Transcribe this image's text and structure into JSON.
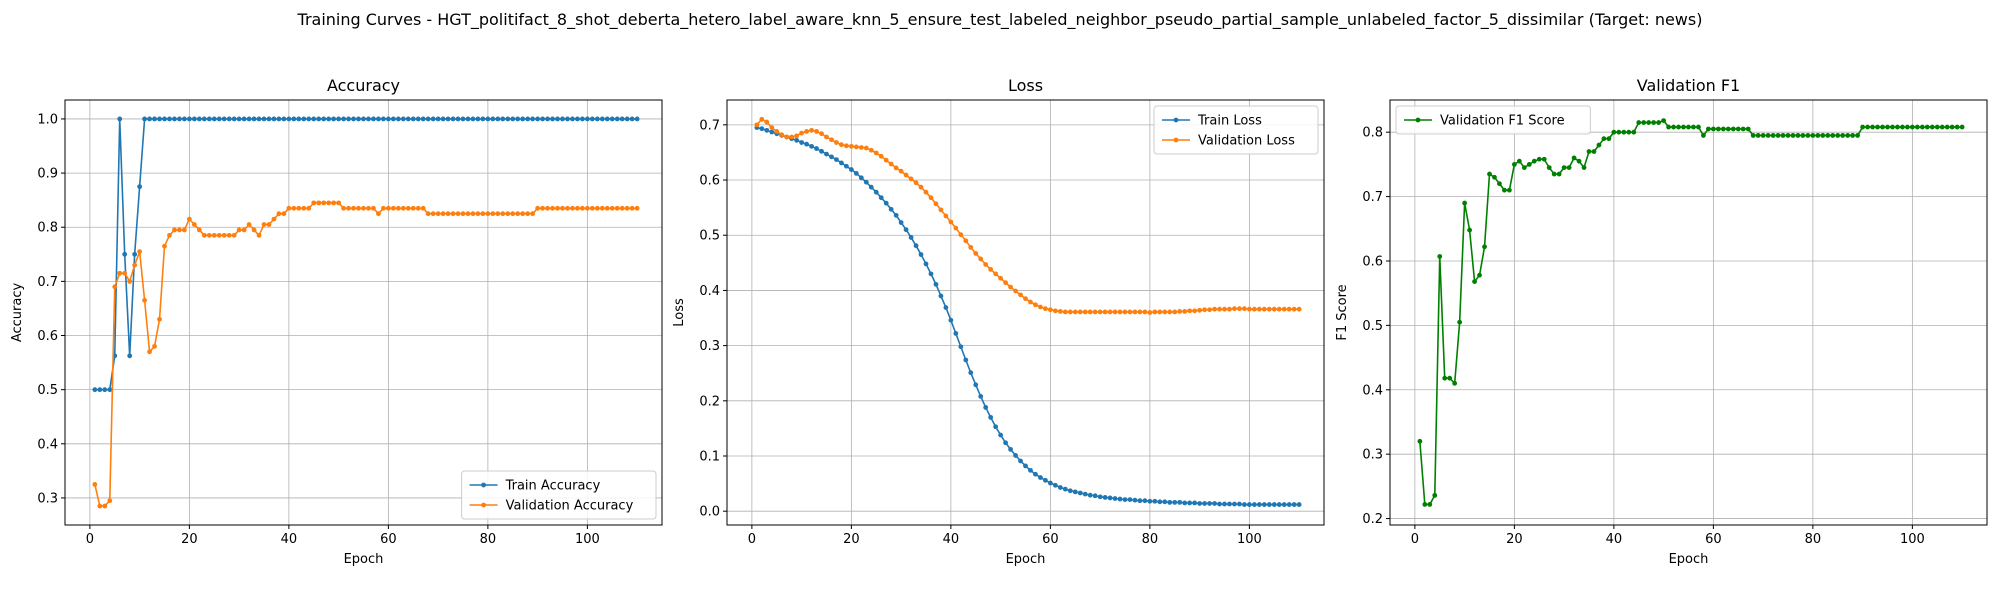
{
  "figure": {
    "suptitle": "Training Curves - HGT_politifact_8_shot_deberta_hetero_label_aware_knn_5_ensure_test_labeled_neighbor_pseudo_partial_sample_unlabeled_factor_5_dissimilar (Target: news)"
  },
  "colors": {
    "train": "#1f77b4",
    "val": "#ff7f0e",
    "f1": "#008000",
    "grid": "#b0b0b0"
  },
  "chart_data": [
    {
      "type": "line",
      "title": "Accuracy",
      "xlabel": "Epoch",
      "ylabel": "Accuracy",
      "xlim": [
        -5,
        115
      ],
      "ylim": [
        0.25,
        1.035
      ],
      "xticks": [
        0,
        20,
        40,
        60,
        80,
        100
      ],
      "yticks": [
        0.3,
        0.4,
        0.5,
        0.6,
        0.7,
        0.8,
        0.9,
        1.0
      ],
      "ytick_labels": [
        "0.3",
        "0.4",
        "0.5",
        "0.6",
        "0.7",
        "0.8",
        "0.9",
        "1.0"
      ],
      "grid": true,
      "legend_position": "lower-right",
      "series": [
        {
          "name": "Train Accuracy",
          "color": "#1f77b4",
          "x_start": 1,
          "values": [
            0.5,
            0.5,
            0.5,
            0.5,
            0.5625,
            1.0,
            0.75,
            0.5625,
            0.75,
            0.875,
            1.0,
            1.0,
            1.0,
            1.0,
            1.0,
            1.0,
            1.0,
            1.0,
            1.0,
            1.0,
            1.0,
            1.0,
            1.0,
            1.0,
            1.0,
            1.0,
            1.0,
            1.0,
            1.0,
            1.0,
            1.0,
            1.0,
            1.0,
            1.0,
            1.0,
            1.0,
            1.0,
            1.0,
            1.0,
            1.0,
            1.0,
            1.0,
            1.0,
            1.0,
            1.0,
            1.0,
            1.0,
            1.0,
            1.0,
            1.0,
            1.0,
            1.0,
            1.0,
            1.0,
            1.0,
            1.0,
            1.0,
            1.0,
            1.0,
            1.0,
            1.0,
            1.0,
            1.0,
            1.0,
            1.0,
            1.0,
            1.0,
            1.0,
            1.0,
            1.0,
            1.0,
            1.0,
            1.0,
            1.0,
            1.0,
            1.0,
            1.0,
            1.0,
            1.0,
            1.0,
            1.0,
            1.0,
            1.0,
            1.0,
            1.0,
            1.0,
            1.0,
            1.0,
            1.0,
            1.0,
            1.0,
            1.0,
            1.0,
            1.0,
            1.0,
            1.0,
            1.0,
            1.0,
            1.0,
            1.0,
            1.0,
            1.0,
            1.0,
            1.0,
            1.0,
            1.0,
            1.0,
            1.0,
            1.0,
            1.0
          ]
        },
        {
          "name": "Validation Accuracy",
          "color": "#ff7f0e",
          "x_start": 1,
          "values": [
            0.325,
            0.285,
            0.285,
            0.295,
            0.69,
            0.715,
            0.715,
            0.7,
            0.73,
            0.755,
            0.665,
            0.57,
            0.58,
            0.63,
            0.765,
            0.785,
            0.795,
            0.795,
            0.795,
            0.815,
            0.805,
            0.795,
            0.785,
            0.785,
            0.785,
            0.785,
            0.785,
            0.785,
            0.785,
            0.795,
            0.795,
            0.805,
            0.795,
            0.785,
            0.805,
            0.805,
            0.815,
            0.825,
            0.825,
            0.835,
            0.835,
            0.835,
            0.835,
            0.835,
            0.845,
            0.845,
            0.845,
            0.845,
            0.845,
            0.845,
            0.835,
            0.835,
            0.835,
            0.835,
            0.835,
            0.835,
            0.835,
            0.825,
            0.835,
            0.835,
            0.835,
            0.835,
            0.835,
            0.835,
            0.835,
            0.835,
            0.835,
            0.825,
            0.825,
            0.825,
            0.825,
            0.825,
            0.825,
            0.825,
            0.825,
            0.825,
            0.825,
            0.825,
            0.825,
            0.825,
            0.825,
            0.825,
            0.825,
            0.825,
            0.825,
            0.825,
            0.825,
            0.825,
            0.825,
            0.835,
            0.835,
            0.835,
            0.835,
            0.835,
            0.835,
            0.835,
            0.835,
            0.835,
            0.835,
            0.835,
            0.835,
            0.835,
            0.835,
            0.835,
            0.835,
            0.835,
            0.835,
            0.835,
            0.835,
            0.835
          ]
        }
      ]
    },
    {
      "type": "line",
      "title": "Loss",
      "xlabel": "Epoch",
      "ylabel": "Loss",
      "xlim": [
        -5,
        115
      ],
      "ylim": [
        -0.025,
        0.745
      ],
      "xticks": [
        0,
        20,
        40,
        60,
        80,
        100
      ],
      "yticks": [
        0.0,
        0.1,
        0.2,
        0.3,
        0.4,
        0.5,
        0.6,
        0.7
      ],
      "ytick_labels": [
        "0.0",
        "0.1",
        "0.2",
        "0.3",
        "0.4",
        "0.5",
        "0.6",
        "0.7"
      ],
      "grid": true,
      "legend_position": "upper-right",
      "series": [
        {
          "name": "Train Loss",
          "color": "#1f77b4",
          "x_start": 1,
          "values": [
            0.695,
            0.693,
            0.69,
            0.687,
            0.684,
            0.681,
            0.678,
            0.675,
            0.672,
            0.668,
            0.665,
            0.661,
            0.657,
            0.652,
            0.647,
            0.642,
            0.637,
            0.631,
            0.625,
            0.619,
            0.612,
            0.604,
            0.596,
            0.587,
            0.578,
            0.568,
            0.558,
            0.547,
            0.536,
            0.523,
            0.51,
            0.496,
            0.481,
            0.465,
            0.448,
            0.43,
            0.411,
            0.39,
            0.369,
            0.346,
            0.322,
            0.298,
            0.274,
            0.251,
            0.229,
            0.208,
            0.188,
            0.17,
            0.153,
            0.138,
            0.124,
            0.112,
            0.101,
            0.091,
            0.082,
            0.074,
            0.067,
            0.061,
            0.056,
            0.051,
            0.047,
            0.043,
            0.04,
            0.037,
            0.035,
            0.033,
            0.031,
            0.029,
            0.028,
            0.026,
            0.025,
            0.024,
            0.023,
            0.022,
            0.021,
            0.021,
            0.02,
            0.019,
            0.019,
            0.018,
            0.018,
            0.017,
            0.017,
            0.016,
            0.016,
            0.016,
            0.015,
            0.015,
            0.015,
            0.014,
            0.014,
            0.014,
            0.014,
            0.013,
            0.013,
            0.013,
            0.013,
            0.013,
            0.012,
            0.012,
            0.012,
            0.012,
            0.012,
            0.012,
            0.012,
            0.012,
            0.012,
            0.012,
            0.012,
            0.012
          ]
        },
        {
          "name": "Validation Loss",
          "color": "#ff7f0e",
          "x_start": 1,
          "values": [
            0.7,
            0.71,
            0.705,
            0.695,
            0.688,
            0.682,
            0.678,
            0.678,
            0.68,
            0.685,
            0.688,
            0.69,
            0.688,
            0.684,
            0.678,
            0.673,
            0.668,
            0.664,
            0.662,
            0.661,
            0.66,
            0.659,
            0.658,
            0.654,
            0.649,
            0.643,
            0.636,
            0.629,
            0.622,
            0.616,
            0.609,
            0.602,
            0.595,
            0.587,
            0.578,
            0.568,
            0.557,
            0.546,
            0.535,
            0.524,
            0.513,
            0.501,
            0.49,
            0.478,
            0.467,
            0.457,
            0.447,
            0.438,
            0.43,
            0.422,
            0.414,
            0.406,
            0.399,
            0.392,
            0.385,
            0.379,
            0.374,
            0.37,
            0.367,
            0.365,
            0.363,
            0.362,
            0.361,
            0.361,
            0.361,
            0.361,
            0.361,
            0.361,
            0.361,
            0.361,
            0.361,
            0.361,
            0.361,
            0.361,
            0.361,
            0.361,
            0.361,
            0.361,
            0.361,
            0.36,
            0.361,
            0.361,
            0.361,
            0.361,
            0.361,
            0.362,
            0.362,
            0.363,
            0.363,
            0.364,
            0.365,
            0.365,
            0.366,
            0.366,
            0.366,
            0.366,
            0.367,
            0.367,
            0.367,
            0.366,
            0.366,
            0.366,
            0.366,
            0.366,
            0.366,
            0.366,
            0.366,
            0.366,
            0.366,
            0.366
          ]
        }
      ]
    },
    {
      "type": "line",
      "title": "Validation F1",
      "xlabel": "Epoch",
      "ylabel": "F1 Score",
      "xlim": [
        -5,
        115
      ],
      "ylim": [
        0.19,
        0.85
      ],
      "xticks": [
        0,
        20,
        40,
        60,
        80,
        100
      ],
      "yticks": [
        0.2,
        0.3,
        0.4,
        0.5,
        0.6,
        0.7,
        0.8
      ],
      "ytick_labels": [
        "0.2",
        "0.3",
        "0.4",
        "0.5",
        "0.6",
        "0.7",
        "0.8"
      ],
      "grid": true,
      "legend_position": "upper-left",
      "series": [
        {
          "name": "Validation F1 Score",
          "color": "#008000",
          "x_start": 1,
          "values": [
            0.32,
            0.222,
            0.222,
            0.236,
            0.607,
            0.418,
            0.418,
            0.41,
            0.505,
            0.69,
            0.648,
            0.568,
            0.578,
            0.622,
            0.735,
            0.73,
            0.72,
            0.71,
            0.71,
            0.75,
            0.755,
            0.745,
            0.75,
            0.755,
            0.758,
            0.758,
            0.745,
            0.735,
            0.735,
            0.745,
            0.745,
            0.76,
            0.755,
            0.745,
            0.77,
            0.77,
            0.78,
            0.79,
            0.79,
            0.8,
            0.8,
            0.8,
            0.8,
            0.8,
            0.815,
            0.815,
            0.815,
            0.815,
            0.815,
            0.818,
            0.808,
            0.808,
            0.808,
            0.808,
            0.808,
            0.808,
            0.808,
            0.795,
            0.805,
            0.805,
            0.805,
            0.805,
            0.805,
            0.805,
            0.805,
            0.805,
            0.805,
            0.795,
            0.795,
            0.795,
            0.795,
            0.795,
            0.795,
            0.795,
            0.795,
            0.795,
            0.795,
            0.795,
            0.795,
            0.795,
            0.795,
            0.795,
            0.795,
            0.795,
            0.795,
            0.795,
            0.795,
            0.795,
            0.795,
            0.808,
            0.808,
            0.808,
            0.808,
            0.808,
            0.808,
            0.808,
            0.808,
            0.808,
            0.808,
            0.808,
            0.808,
            0.808,
            0.808,
            0.808,
            0.808,
            0.808,
            0.808,
            0.808,
            0.808,
            0.808
          ]
        }
      ]
    }
  ]
}
